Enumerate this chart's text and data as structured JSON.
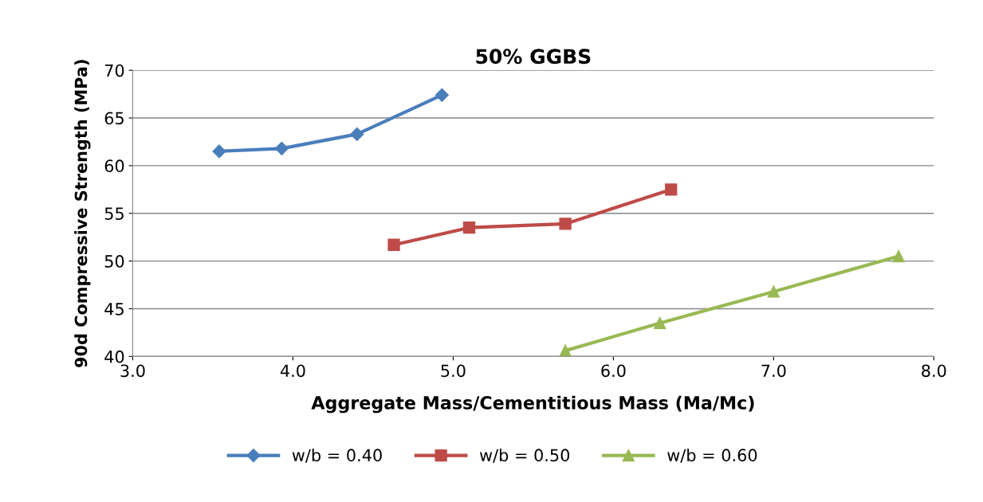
{
  "chart_data": {
    "type": "line",
    "title": "50% GGBS",
    "xlabel": "Aggregate Mass/Cementitious Mass (Ma/Mc)",
    "ylabel": "90d Compressive Strength (MPa)",
    "xlim": [
      3.0,
      8.0
    ],
    "xticks": [
      {
        "value": 3,
        "label": "3.0"
      },
      {
        "value": 4,
        "label": "4.0"
      },
      {
        "value": 5,
        "label": "5.0"
      },
      {
        "value": 6,
        "label": "6.0"
      },
      {
        "value": 7,
        "label": "7.0"
      },
      {
        "value": 8,
        "label": "8.0"
      }
    ],
    "ylim": [
      40,
      70
    ],
    "yticks": [
      40,
      45,
      50,
      55,
      60,
      65,
      70
    ],
    "grid": "y",
    "legend": "bottom",
    "series": [
      {
        "name": "w/b = 0.40",
        "color": "#4a7ebb",
        "marker": "diamond",
        "x": [
          3.54,
          3.93,
          4.4,
          4.93
        ],
        "values": [
          61.5,
          61.8,
          63.3,
          67.4
        ]
      },
      {
        "name": "w/b = 0.50",
        "color": "#be4b48",
        "marker": "square",
        "x": [
          4.63,
          5.1,
          5.7,
          6.36
        ],
        "values": [
          51.7,
          53.5,
          53.9,
          57.5
        ]
      },
      {
        "name": "w/b = 0.60",
        "color": "#98b954",
        "marker": "triangle",
        "x": [
          5.7,
          6.29,
          7.0,
          7.78
        ],
        "values": [
          40.6,
          43.5,
          46.8,
          50.5
        ]
      }
    ]
  }
}
